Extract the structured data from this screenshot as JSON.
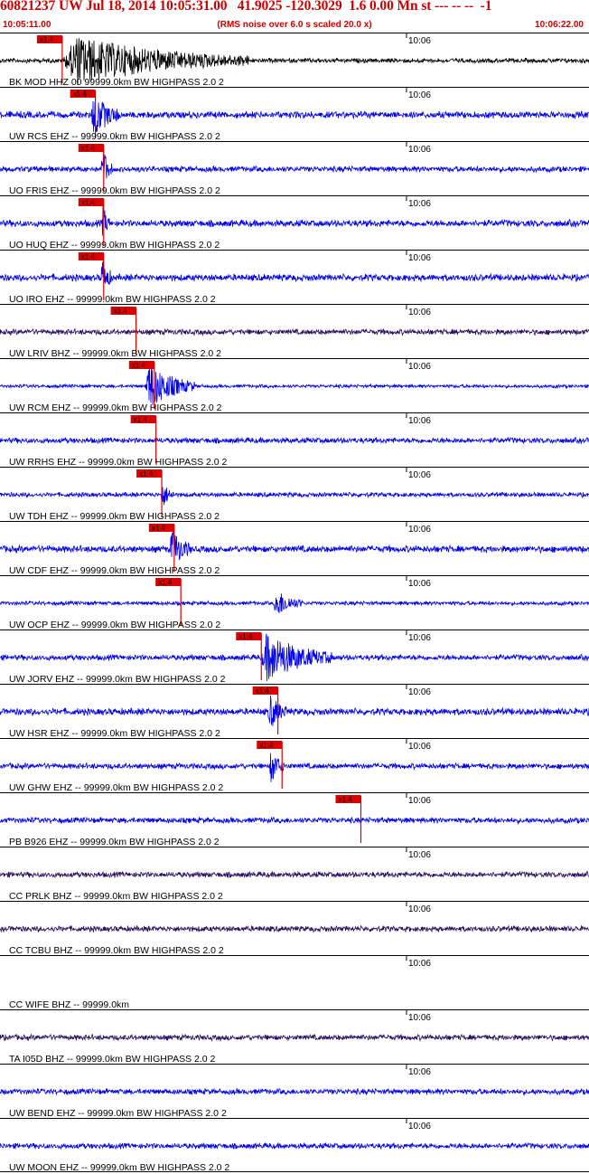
{
  "header": {
    "title": "60821237 UW Jul 18, 2014 10:05:31.00   41.9025 -120.3029  1.6 0.00 Mn st --- -- --  -1",
    "start_time": "10:05:11.00",
    "subtitle": "(RMS noise over 6.0 s scaled 20.0 x)",
    "end_time": "10:06:22.00"
  },
  "chart_data": {
    "type": "line",
    "title": "60821237 UW Jul 18, 2014 10:05:31.00   41.9025 -120.3029  1.6 0.00 Mn st --- -- --  -1",
    "subtitle": "(RMS noise over 6.0 s scaled 20.0 x)",
    "x_axis": {
      "start": "10:05:11.00",
      "end": "10:06:22.00",
      "start_seconds": 0,
      "end_seconds": 71,
      "tick_label": "10:06",
      "tick_seconds": 49
    },
    "pick_label": "x1.4",
    "colors": {
      "trace": "#0000ee",
      "dark_trace": "#2a0d5c",
      "black_trace": "#000000",
      "pick": "#dd0000",
      "grid": "#000000"
    },
    "traces": [
      {
        "label": "BK MOD HHZ 00 99999.0km BW  HIGHPASS  2.0  2",
        "color": "black",
        "pick_s": 7.5,
        "event_start_s": 7.5,
        "event_end_s": 30,
        "amplitude": 1.0,
        "noise": 0.08
      },
      {
        "label": "UW RCS EHZ -- 99999.0km BW  HIGHPASS  2.0  2",
        "color": "blue",
        "pick_s": 11.5,
        "event_start_s": 11.0,
        "event_end_s": 14.5,
        "amplitude": 0.9,
        "noise": 0.12
      },
      {
        "label": "UO FRIS EHZ -- 99999.0km BW  HIGHPASS  2.0  2",
        "color": "blue",
        "pick_s": 12.5,
        "event_start_s": 12.2,
        "event_end_s": 13.5,
        "amplitude": 1.0,
        "noise": 0.1
      },
      {
        "label": "UO HUQ EHZ -- 99999.0km BW  HIGHPASS  2.0  2",
        "color": "blue",
        "pick_s": 12.5,
        "event_start_s": 12.3,
        "event_end_s": 13.3,
        "amplitude": 0.7,
        "noise": 0.12
      },
      {
        "label": "UO IRO EHZ -- 99999.0km BW  HIGHPASS  2.0  2",
        "color": "blue",
        "pick_s": 12.5,
        "event_start_s": 12.2,
        "event_end_s": 13.4,
        "amplitude": 1.0,
        "noise": 0.12
      },
      {
        "label": "UW LRIV BHZ -- 99999.0km BW  HIGHPASS  2.0  2",
        "color": "dark",
        "pick_s": 16.4,
        "event_start_s": 0,
        "event_end_s": 0,
        "amplitude": 0,
        "noise": 0.1
      },
      {
        "label": "UW RCM EHZ -- 99999.0km BW  HIGHPASS  2.0  2",
        "color": "blue",
        "pick_s": 18.6,
        "event_start_s": 17.5,
        "event_end_s": 23.5,
        "amplitude": 1.0,
        "noise": 0.06
      },
      {
        "label": "UW RRHS EHZ -- 99999.0km BW  HIGHPASS  2.0  2",
        "color": "blue",
        "pick_s": 18.8,
        "event_start_s": 0,
        "event_end_s": 0,
        "amplitude": 0,
        "noise": 0.1
      },
      {
        "label": "UW TDH EHZ -- 99999.0km BW  HIGHPASS  2.0  2",
        "color": "blue",
        "pick_s": 19.5,
        "event_start_s": 19.4,
        "event_end_s": 21.0,
        "amplitude": 0.55,
        "noise": 0.08
      },
      {
        "label": "UW CDF EHZ -- 99999.0km BW  HIGHPASS  2.0  2",
        "color": "blue",
        "pick_s": 21.0,
        "event_start_s": 20.5,
        "event_end_s": 23.0,
        "amplitude": 0.9,
        "noise": 0.12
      },
      {
        "label": "UW OCP EHZ -- 99999.0km BW  HIGHPASS  2.0  2",
        "color": "blue",
        "pick_s": 21.8,
        "event_start_s": 33.0,
        "event_end_s": 36.5,
        "amplitude": 0.6,
        "noise": 0.07
      },
      {
        "label": "UW JORV EHZ -- 99999.0km BW  HIGHPASS  2.0  2",
        "color": "blue",
        "pick_s": 31.5,
        "event_start_s": 31.5,
        "event_end_s": 40.0,
        "amplitude": 1.0,
        "noise": 0.1
      },
      {
        "label": "UW HSR EHZ -- 99999.0km BW  HIGHPASS  2.0  2",
        "color": "blue",
        "pick_s": 33.5,
        "event_start_s": 32.3,
        "event_end_s": 34.7,
        "amplitude": 0.7,
        "noise": 0.12
      },
      {
        "label": "UW GHW EHZ -- 99999.0km BW  HIGHPASS  2.0  2",
        "color": "blue",
        "pick_s": 34.0,
        "event_start_s": 32.5,
        "event_end_s": 34.5,
        "amplitude": 0.7,
        "noise": 0.1
      },
      {
        "label": "PB B926 EHZ -- 99999.0km BW  HIGHPASS  2.0  2",
        "color": "blue",
        "pick_s": 43.5,
        "event_start_s": 0,
        "event_end_s": 0,
        "amplitude": 0,
        "noise": 0.1
      },
      {
        "label": "CC PRLK BHZ -- 99999.0km BW  HIGHPASS  2.0  2",
        "color": "dark",
        "pick_s": null,
        "event_start_s": 0,
        "event_end_s": 0,
        "amplitude": 0,
        "noise": 0.1
      },
      {
        "label": "CC TCBU BHZ -- 99999.0km BW  HIGHPASS  2.0  2",
        "color": "dark",
        "pick_s": null,
        "event_start_s": 0,
        "event_end_s": 0,
        "amplitude": 0,
        "noise": 0.1
      },
      {
        "label": "CC WIFE BHZ -- 99999.0km",
        "color": "dark",
        "pick_s": null,
        "event_start_s": 0,
        "event_end_s": 0,
        "amplitude": 0,
        "noise": 0
      },
      {
        "label": "TA I05D BHZ -- 99999.0km BW  HIGHPASS  2.0  2",
        "color": "dark",
        "pick_s": null,
        "event_start_s": 0,
        "event_end_s": 0,
        "amplitude": 0,
        "noise": 0.1
      },
      {
        "label": "UW BEND EHZ -- 99999.0km BW  HIGHPASS  2.0  2",
        "color": "blue",
        "pick_s": null,
        "event_start_s": 0,
        "event_end_s": 0,
        "amplitude": 0,
        "noise": 0.1
      },
      {
        "label": "UW MOON EHZ -- 99999.0km BW  HIGHPASS  2.0  2",
        "color": "blue",
        "pick_s": null,
        "event_start_s": 0,
        "event_end_s": 0,
        "amplitude": 0,
        "noise": 0.1
      }
    ]
  }
}
